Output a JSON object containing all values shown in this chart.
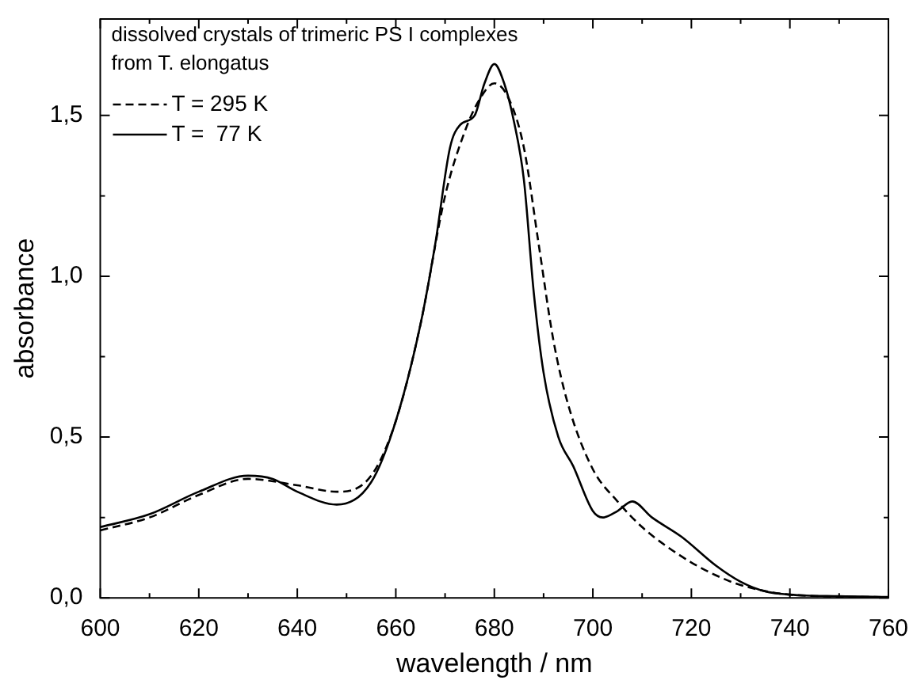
{
  "chart_data": {
    "type": "line",
    "xlabel": "wavelength / nm",
    "ylabel": "absorbance",
    "annotations": [
      "dissolved crystals of trimeric PS I complexes",
      "from T. elongatus"
    ],
    "xlim": [
      600,
      760
    ],
    "ylim": [
      0,
      1.8
    ],
    "xticks": [
      600,
      {
        "value": 610,
        "label": null
      },
      620,
      {
        "value": 630,
        "label": null
      },
      640,
      {
        "value": 650,
        "label": null
      },
      660,
      {
        "value": 670,
        "label": null
      },
      680,
      {
        "value": 690,
        "label": null
      },
      700,
      {
        "value": 710,
        "label": null
      },
      720,
      {
        "value": 730,
        "label": null
      },
      740,
      {
        "value": 750,
        "label": null
      },
      760
    ],
    "yticks": [
      {
        "value": 0,
        "label": "0,0"
      },
      {
        "value": 0.25,
        "label": null
      },
      {
        "value": 0.5,
        "label": "0,5"
      },
      {
        "value": 0.75,
        "label": null
      },
      {
        "value": 1,
        "label": "1,0"
      },
      {
        "value": 1.25,
        "label": null
      },
      {
        "value": 1.5,
        "label": "1,5"
      }
    ],
    "legend": "top left",
    "marker": "none",
    "grid": false,
    "series": [
      {
        "name": "T = 295 K",
        "color": "#000000",
        "line_style": "dashed",
        "x": [
          600,
          610,
          620,
          630,
          640,
          648,
          655,
          660,
          665,
          670,
          674,
          677,
          680,
          683,
          686,
          689,
          692,
          695,
          700,
          705,
          710,
          715,
          720,
          725,
          730,
          740,
          760
        ],
        "values": [
          0.21,
          0.25,
          0.32,
          0.37,
          0.35,
          0.33,
          0.38,
          0.55,
          0.85,
          1.25,
          1.45,
          1.55,
          1.6,
          1.55,
          1.4,
          1.1,
          0.8,
          0.6,
          0.4,
          0.3,
          0.22,
          0.16,
          0.11,
          0.07,
          0.04,
          0.01,
          0.002
        ]
      },
      {
        "name": "T =  77 K",
        "color": "#000000",
        "line_style": "solid",
        "x": [
          600,
          610,
          620,
          630,
          635,
          640,
          648,
          655,
          660,
          665,
          668,
          671,
          673,
          676,
          678,
          680,
          682,
          684,
          686,
          688,
          690,
          693,
          696,
          700,
          702,
          705,
          708,
          712,
          718,
          725,
          730,
          735,
          740,
          750,
          760
        ],
        "values": [
          0.22,
          0.26,
          0.33,
          0.38,
          0.37,
          0.33,
          0.29,
          0.36,
          0.55,
          0.85,
          1.1,
          1.4,
          1.47,
          1.5,
          1.6,
          1.66,
          1.6,
          1.48,
          1.3,
          0.95,
          0.7,
          0.5,
          0.41,
          0.27,
          0.25,
          0.27,
          0.3,
          0.25,
          0.19,
          0.1,
          0.05,
          0.02,
          0.01,
          0.005,
          0.003
        ]
      }
    ]
  }
}
